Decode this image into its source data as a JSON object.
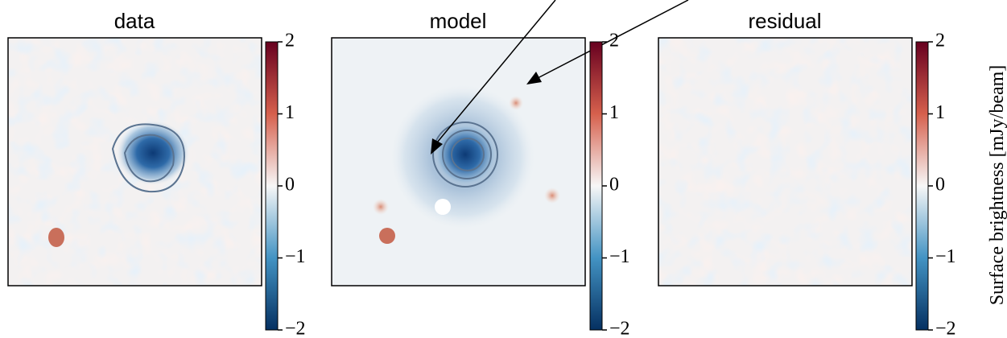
{
  "chart_data": [
    {
      "type": "heatmap",
      "title": "data",
      "colormap": [
        "#67001f",
        "#d6604d",
        "#f7f7f7",
        "#4393c3",
        "#053061"
      ],
      "zlim": [
        -2,
        2
      ],
      "zticks": [
        2,
        1,
        0,
        {
          "value": -1,
          "label": "−1"
        },
        {
          "value": -2,
          "label": "−2"
        }
      ]
    },
    {
      "type": "heatmap",
      "title": "model",
      "colormap": [
        "#67001f",
        "#d6604d",
        "#f7f7f7",
        "#4393c3",
        "#053061"
      ],
      "zlim": [
        -2,
        2
      ],
      "zticks": [
        2,
        1,
        0,
        {
          "value": -1,
          "label": "−1"
        },
        {
          "value": -2,
          "label": "−2"
        }
      ]
    },
    {
      "type": "heatmap",
      "title": "residual",
      "colormap": [
        "#67001f",
        "#d6604d",
        "#f7f7f7",
        "#4393c3",
        "#053061"
      ],
      "zlim": [
        -2,
        2
      ],
      "zticks": [
        2,
        1,
        0,
        {
          "value": -1,
          "label": "−1"
        },
        {
          "value": -2,
          "label": "−2"
        }
      ],
      "colorbar_label": "Surface brightness [mJy/beam]"
    }
  ]
}
